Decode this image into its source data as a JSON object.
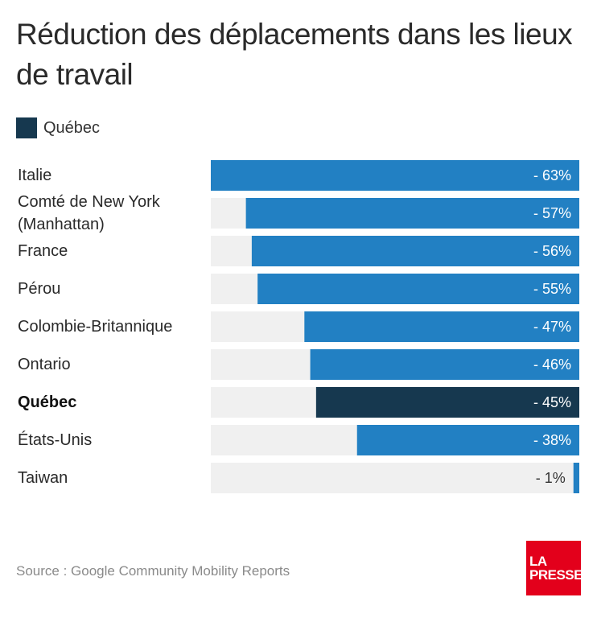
{
  "chart_data": {
    "type": "bar",
    "orientation": "horizontal",
    "title": "Réduction des déplacements dans les lieux de travail",
    "legend": {
      "label": "Québec",
      "color": "#16384f"
    },
    "categories": [
      "Italie",
      "Comté de New York\n(Manhattan)",
      "France",
      "Pérou",
      "Colombie-Britannique",
      "Ontario",
      "Québec",
      "États-Unis",
      "Taiwan"
    ],
    "values": [
      -63,
      -57,
      -56,
      -55,
      -47,
      -46,
      -45,
      -38,
      -1
    ],
    "value_labels": [
      "- 63%",
      "- 57%",
      "- 56%",
      "- 55%",
      "- 47%",
      "- 46%",
      "- 45%",
      "- 38%",
      "- 1%"
    ],
    "highlight_index": 6,
    "xlim": [
      -63,
      0
    ],
    "colors": {
      "bar": "#2280c3",
      "highlight": "#16384f",
      "track": "#f0f0f0"
    }
  },
  "source": "Source : Google Community Mobility Reports",
  "logo": {
    "line1": "LA",
    "line2": "PRESSE",
    "color": "#e3001b"
  }
}
